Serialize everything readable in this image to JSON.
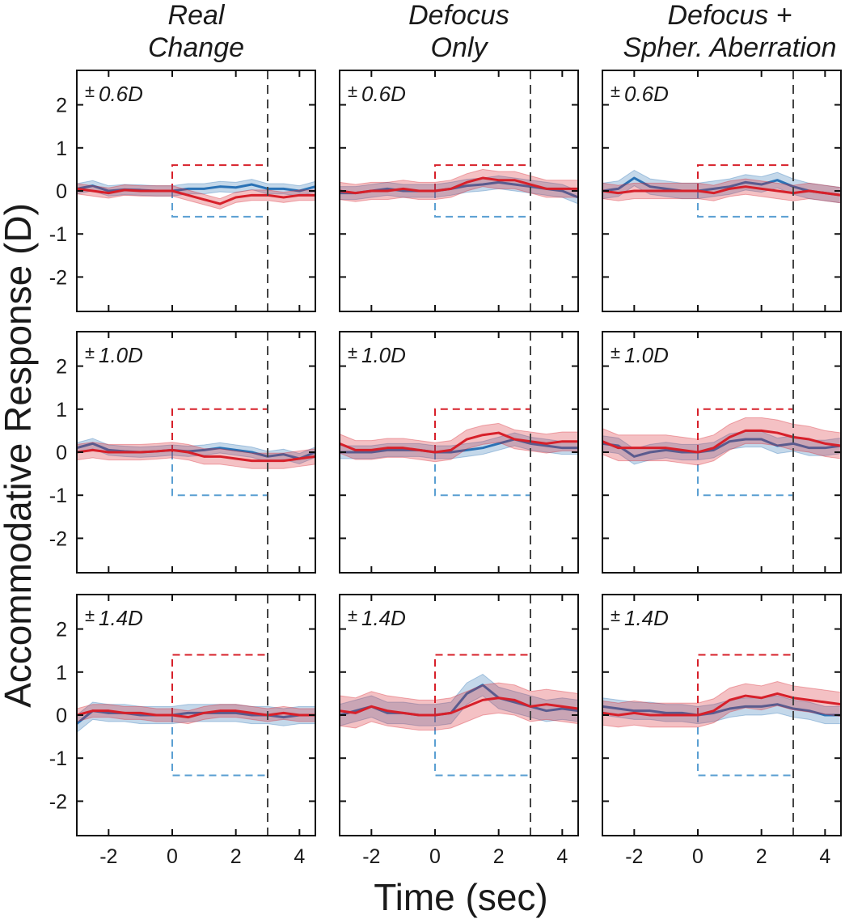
{
  "colors": {
    "blue": "#2a72b5",
    "red": "#d7202a",
    "light_blue": "#5a9fd2",
    "black_dash": "#444444"
  },
  "chart_data": {
    "type": "line",
    "layout": "3x3 small multiples",
    "ylabel": "Accommodative Response (D)",
    "xlabel": "Time (sec)",
    "xlim": [
      -3,
      4.5
    ],
    "ylim": [
      -2.8,
      2.8
    ],
    "xticks": [
      -2,
      0,
      2,
      4
    ],
    "yticks": [
      2,
      1,
      0,
      -1,
      -2
    ],
    "xtick_labels": [
      "-2",
      "0",
      "2",
      "4"
    ],
    "ytick_labels": [
      "2",
      "1",
      "0",
      "-1",
      "-2"
    ],
    "event_line_x": 3,
    "step_start_x": 0,
    "columns": [
      {
        "title_lines": [
          "Real",
          "Change"
        ]
      },
      {
        "title_lines": [
          "Defocus",
          "Only"
        ]
      },
      {
        "title_lines": [
          "Defocus +",
          "Spher. Aberration"
        ]
      }
    ],
    "rows": [
      {
        "label": "0.6D",
        "magnitude": 0.6
      },
      {
        "label": "1.0D",
        "magnitude": 1.0
      },
      {
        "label": "1.4D",
        "magnitude": 1.4
      }
    ],
    "pm_symbol": "±",
    "series_colors": {
      "blue": "#2a72b5",
      "red": "#d7202a"
    },
    "panels": [
      {
        "row": 0,
        "col": 0,
        "blue": {
          "x": [
            -3,
            -2.5,
            -2,
            -1.5,
            -1,
            -0.5,
            0,
            0.5,
            1,
            1.5,
            2,
            2.5,
            3,
            3.5,
            4,
            4.5
          ],
          "y": [
            0.05,
            0.12,
            0.0,
            0.03,
            0.02,
            0.0,
            0.0,
            0.05,
            0.05,
            0.1,
            0.08,
            0.15,
            0.05,
            0.05,
            0.0,
            0.1
          ],
          "band": 0.12
        },
        "red": {
          "x": [
            -3,
            -2.5,
            -2,
            -1.5,
            -1,
            -0.5,
            0,
            0.5,
            1,
            1.5,
            2,
            2.5,
            3,
            3.5,
            4,
            4.5
          ],
          "y": [
            0.05,
            0.0,
            -0.05,
            0.02,
            0.0,
            0.0,
            0.0,
            -0.1,
            -0.2,
            -0.3,
            -0.15,
            -0.1,
            -0.1,
            -0.15,
            -0.1,
            -0.1
          ],
          "band": 0.12
        }
      },
      {
        "row": 0,
        "col": 1,
        "blue": {
          "x": [
            -3,
            -2.5,
            -2,
            -1.5,
            -1,
            -0.5,
            0,
            0.5,
            1,
            1.5,
            2,
            2.5,
            3,
            3.5,
            4,
            4.5
          ],
          "y": [
            -0.05,
            -0.05,
            0.0,
            0.05,
            0.0,
            0.0,
            0.0,
            0.05,
            0.12,
            0.15,
            0.2,
            0.15,
            0.1,
            0.05,
            0.0,
            -0.15
          ],
          "band": 0.15
        },
        "red": {
          "x": [
            -3,
            -2.5,
            -2,
            -1.5,
            -1,
            -0.5,
            0,
            0.5,
            1,
            1.5,
            2,
            2.5,
            3,
            3.5,
            4,
            4.5
          ],
          "y": [
            0.0,
            -0.05,
            0.0,
            0.0,
            0.05,
            0.0,
            0.0,
            0.05,
            0.2,
            0.3,
            0.25,
            0.25,
            0.15,
            0.05,
            0.05,
            0.05
          ],
          "band": 0.2
        }
      },
      {
        "row": 0,
        "col": 2,
        "blue": {
          "x": [
            -3,
            -2.5,
            -2,
            -1.5,
            -1,
            -0.5,
            0,
            0.5,
            1,
            1.5,
            2,
            2.5,
            3,
            3.5,
            4,
            4.5
          ],
          "y": [
            0.0,
            0.05,
            0.3,
            0.1,
            0.05,
            0.0,
            0.0,
            0.05,
            0.1,
            0.2,
            0.15,
            0.25,
            0.1,
            0.0,
            -0.05,
            -0.1
          ],
          "band": 0.18
        },
        "red": {
          "x": [
            -3,
            -2.5,
            -2,
            -1.5,
            -1,
            -0.5,
            0,
            0.5,
            1,
            1.5,
            2,
            2.5,
            3,
            3.5,
            4,
            4.5
          ],
          "y": [
            0.0,
            -0.05,
            0.0,
            0.0,
            0.0,
            0.0,
            0.0,
            -0.05,
            0.05,
            0.1,
            0.05,
            0.0,
            -0.05,
            0.0,
            -0.05,
            -0.1
          ],
          "band": 0.18
        }
      },
      {
        "row": 1,
        "col": 0,
        "blue": {
          "x": [
            -3,
            -2.5,
            -2,
            -1.5,
            -1,
            -0.5,
            0,
            0.5,
            1,
            1.5,
            2,
            2.5,
            3,
            3.5,
            4,
            4.5
          ],
          "y": [
            0.1,
            0.2,
            0.05,
            0.02,
            0.0,
            0.02,
            0.05,
            0.02,
            0.05,
            0.1,
            0.05,
            0.0,
            -0.1,
            -0.05,
            -0.15,
            0.0
          ],
          "band": 0.12
        },
        "red": {
          "x": [
            -3,
            -2.5,
            -2,
            -1.5,
            -1,
            -0.5,
            0,
            0.5,
            1,
            1.5,
            2,
            2.5,
            3,
            3.5,
            4,
            4.5
          ],
          "y": [
            0.0,
            0.05,
            0.0,
            0.0,
            0.0,
            0.02,
            0.05,
            0.0,
            -0.1,
            -0.1,
            -0.15,
            -0.2,
            -0.2,
            -0.2,
            -0.15,
            -0.1
          ],
          "band": 0.18
        }
      },
      {
        "row": 1,
        "col": 1,
        "blue": {
          "x": [
            -3,
            -2.5,
            -2,
            -1.5,
            -1,
            -0.5,
            0,
            0.5,
            1,
            1.5,
            2,
            2.5,
            3,
            3.5,
            4,
            4.5
          ],
          "y": [
            0.0,
            0.0,
            0.0,
            0.05,
            0.05,
            0.05,
            0.0,
            0.0,
            0.05,
            0.1,
            0.2,
            0.3,
            0.2,
            0.15,
            0.1,
            0.1
          ],
          "band": 0.15
        },
        "red": {
          "x": [
            -3,
            -2.5,
            -2,
            -1.5,
            -1,
            -0.5,
            0,
            0.5,
            1,
            1.5,
            2,
            2.5,
            3,
            3.5,
            4,
            4.5
          ],
          "y": [
            0.2,
            0.05,
            0.05,
            0.1,
            0.1,
            0.05,
            0.0,
            0.05,
            0.3,
            0.4,
            0.45,
            0.3,
            0.25,
            0.2,
            0.25,
            0.25
          ],
          "band": 0.22
        }
      },
      {
        "row": 1,
        "col": 2,
        "blue": {
          "x": [
            -3,
            -2.5,
            -2,
            -1.5,
            -1,
            -0.5,
            0,
            0.5,
            1,
            1.5,
            2,
            2.5,
            3,
            3.5,
            4,
            4.5
          ],
          "y": [
            0.2,
            0.15,
            -0.1,
            0.0,
            0.05,
            0.0,
            0.0,
            0.05,
            0.25,
            0.3,
            0.3,
            0.15,
            0.2,
            0.1,
            0.1,
            0.15
          ],
          "band": 0.18
        },
        "red": {
          "x": [
            -3,
            -2.5,
            -2,
            -1.5,
            -1,
            -0.5,
            0,
            0.5,
            1,
            1.5,
            2,
            2.5,
            3,
            3.5,
            4,
            4.5
          ],
          "y": [
            0.25,
            0.1,
            0.1,
            0.1,
            0.1,
            0.05,
            0.0,
            0.1,
            0.35,
            0.5,
            0.5,
            0.45,
            0.35,
            0.3,
            0.2,
            0.15
          ],
          "band": 0.3
        }
      },
      {
        "row": 2,
        "col": 0,
        "blue": {
          "x": [
            -3,
            -2.5,
            -2,
            -1.5,
            -1,
            -0.5,
            0,
            0.5,
            1,
            1.5,
            2,
            2.5,
            3,
            3.5,
            4,
            4.5
          ],
          "y": [
            -0.2,
            0.1,
            0.05,
            0.05,
            0.0,
            0.0,
            0.0,
            0.05,
            0.05,
            0.05,
            0.05,
            0.0,
            0.0,
            -0.05,
            0.0,
            0.0
          ],
          "band": 0.2
        },
        "red": {
          "x": [
            -3,
            -2.5,
            -2,
            -1.5,
            -1,
            -0.5,
            0,
            0.5,
            1,
            1.5,
            2,
            2.5,
            3,
            3.5,
            4,
            4.5
          ],
          "y": [
            0.0,
            0.1,
            0.1,
            0.05,
            0.05,
            0.0,
            0.0,
            -0.05,
            0.05,
            0.1,
            0.1,
            0.05,
            0.0,
            0.05,
            0.0,
            0.0
          ],
          "band": 0.15
        }
      },
      {
        "row": 2,
        "col": 1,
        "blue": {
          "x": [
            -3,
            -2.5,
            -2,
            -1.5,
            -1,
            -0.5,
            0,
            0.5,
            1,
            1.5,
            2,
            2.5,
            3,
            3.5,
            4,
            4.5
          ],
          "y": [
            0.0,
            0.1,
            0.2,
            0.05,
            0.05,
            0.0,
            0.0,
            0.05,
            0.5,
            0.7,
            0.4,
            0.3,
            0.2,
            0.1,
            0.15,
            0.1
          ],
          "band": 0.25
        },
        "red": {
          "x": [
            -3,
            -2.5,
            -2,
            -1.5,
            -1,
            -0.5,
            0,
            0.5,
            1,
            1.5,
            2,
            2.5,
            3,
            3.5,
            4,
            4.5
          ],
          "y": [
            0.1,
            0.05,
            0.2,
            0.1,
            0.05,
            0.0,
            0.0,
            0.05,
            0.2,
            0.35,
            0.4,
            0.35,
            0.2,
            0.25,
            0.2,
            0.15
          ],
          "band": 0.35
        }
      },
      {
        "row": 2,
        "col": 2,
        "blue": {
          "x": [
            -3,
            -2.5,
            -2,
            -1.5,
            -1,
            -0.5,
            0,
            0.5,
            1,
            1.5,
            2,
            2.5,
            3,
            3.5,
            4,
            4.5
          ],
          "y": [
            0.2,
            0.15,
            0.1,
            0.1,
            0.05,
            0.05,
            0.0,
            0.05,
            0.15,
            0.2,
            0.2,
            0.25,
            0.15,
            0.1,
            0.0,
            0.0
          ],
          "band": 0.2
        },
        "red": {
          "x": [
            -3,
            -2.5,
            -2,
            -1.5,
            -1,
            -0.5,
            0,
            0.5,
            1,
            1.5,
            2,
            2.5,
            3,
            3.5,
            4,
            4.5
          ],
          "y": [
            0.05,
            0.0,
            0.05,
            0.0,
            0.0,
            0.0,
            0.0,
            0.1,
            0.35,
            0.45,
            0.4,
            0.5,
            0.4,
            0.35,
            0.3,
            0.25
          ],
          "band": 0.28
        }
      }
    ]
  }
}
